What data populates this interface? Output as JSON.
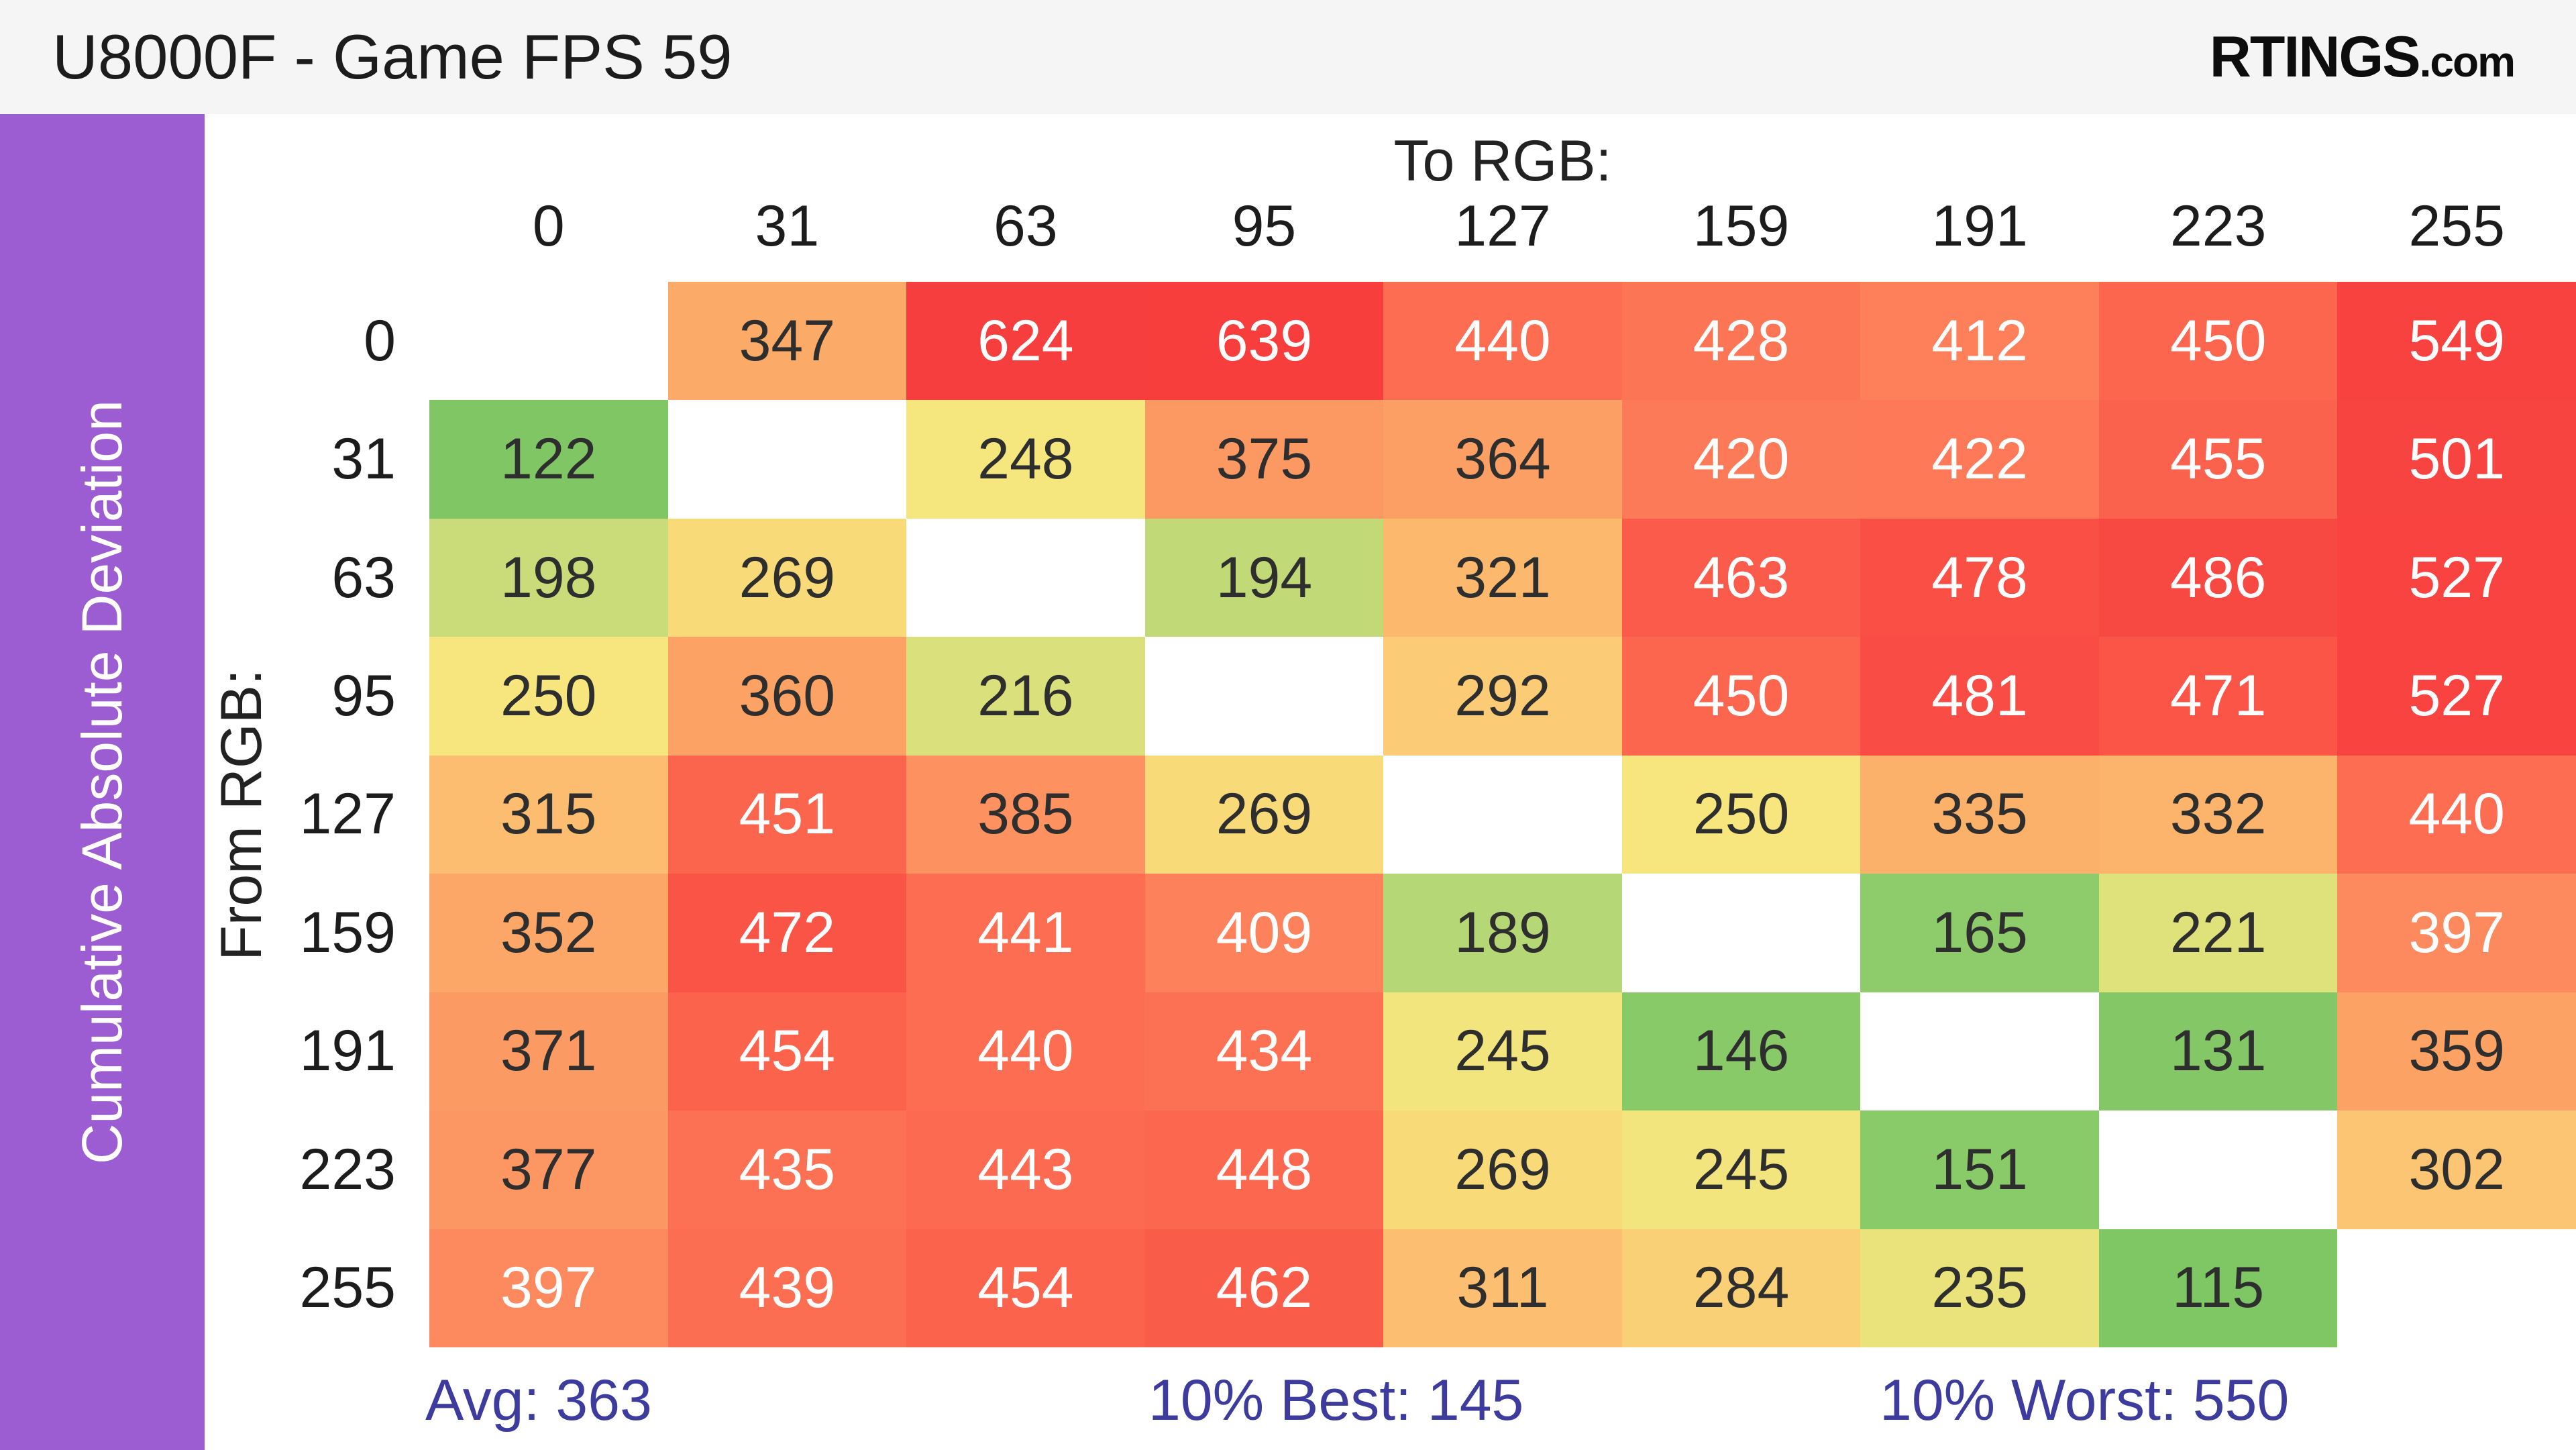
{
  "header": {
    "title": "U8000F - Game FPS 59",
    "logo_main": "RTINGS",
    "logo_suffix": ".com",
    "background": "#f5f5f5",
    "title_color": "#1c1c1c"
  },
  "sidebar": {
    "label": "Cumulative Absolute Deviation",
    "background": "#9c5dd3",
    "text_color": "#ffffff"
  },
  "stats": {
    "avg": "Avg: 363",
    "best": "10% Best: 145",
    "worst": "10% Worst: 550",
    "color": "#3d3b9e"
  },
  "chart_data": {
    "type": "heatmap",
    "title": "U8000F - Game FPS 59",
    "col_axis_label": "To RGB:",
    "row_axis_label": "From RGB:",
    "categories": [
      "0",
      "31",
      "63",
      "95",
      "127",
      "159",
      "191",
      "223",
      "255"
    ],
    "rows": [
      {
        "label": "0",
        "values": [
          null,
          347,
          624,
          639,
          440,
          428,
          412,
          450,
          549
        ]
      },
      {
        "label": "31",
        "values": [
          122,
          null,
          248,
          375,
          364,
          420,
          422,
          455,
          501
        ]
      },
      {
        "label": "63",
        "values": [
          198,
          269,
          null,
          194,
          321,
          463,
          478,
          486,
          527
        ]
      },
      {
        "label": "95",
        "values": [
          250,
          360,
          216,
          null,
          292,
          450,
          481,
          471,
          527
        ]
      },
      {
        "label": "127",
        "values": [
          315,
          451,
          385,
          269,
          null,
          250,
          335,
          332,
          440
        ]
      },
      {
        "label": "159",
        "values": [
          352,
          472,
          441,
          409,
          189,
          null,
          165,
          221,
          397
        ]
      },
      {
        "label": "191",
        "values": [
          371,
          454,
          440,
          434,
          245,
          146,
          null,
          131,
          359
        ]
      },
      {
        "label": "223",
        "values": [
          377,
          435,
          443,
          448,
          269,
          245,
          151,
          null,
          302
        ]
      },
      {
        "label": "255",
        "values": [
          397,
          439,
          454,
          462,
          311,
          284,
          235,
          115,
          null
        ]
      }
    ],
    "stats": {
      "avg": 363,
      "best_10": 145,
      "worst_10": 550
    },
    "empty_cell_color": "#ffffff",
    "color_ramp": [
      [
        110,
        "#7DC563"
      ],
      [
        170,
        "#8FCC6C"
      ],
      [
        200,
        "#CDDD7A"
      ],
      [
        250,
        "#F7E67D"
      ],
      [
        310,
        "#FCC071"
      ],
      [
        350,
        "#FCA867"
      ],
      [
        410,
        "#FD815B"
      ],
      [
        445,
        "#FC6A50"
      ],
      [
        490,
        "#F84541"
      ],
      [
        650,
        "#F73D3D"
      ]
    ],
    "white_text_threshold": 390,
    "text_dark": "#2e2e2e",
    "text_light": "#ffffff"
  }
}
